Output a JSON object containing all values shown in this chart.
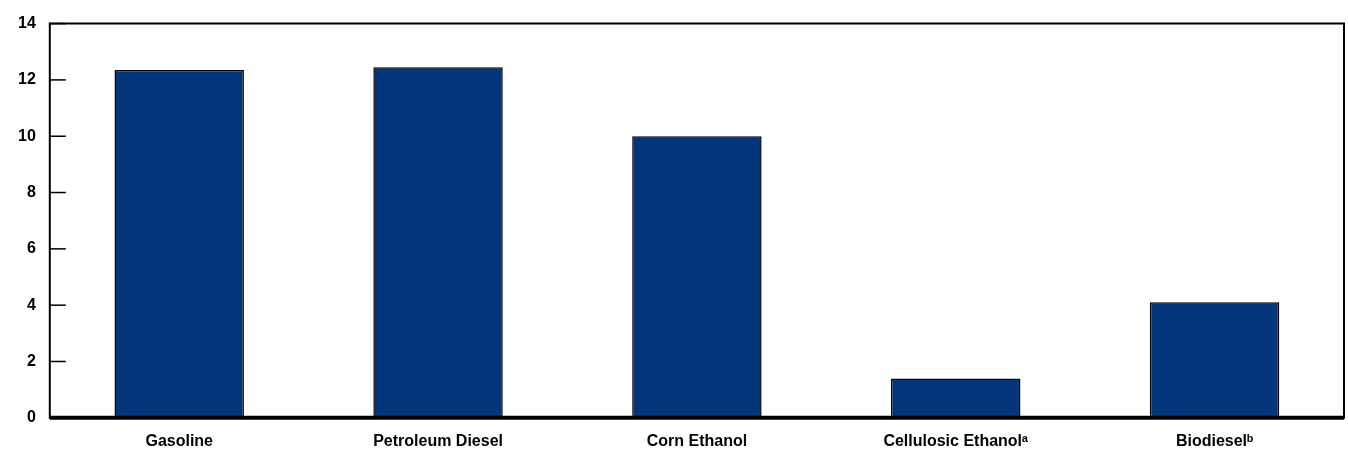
{
  "chart_data": {
    "type": "bar",
    "categories": [
      "Gasoline",
      "Petroleum Diesel",
      "Corn Ethanol",
      "Cellulosic Ethanolᵃ",
      "Biodieselᵇ"
    ],
    "values": [
      12.35,
      12.45,
      10.0,
      1.4,
      4.1
    ],
    "color": "#03357a",
    "ylim": [
      0,
      14
    ],
    "yticks": [
      0,
      2,
      4,
      6,
      8,
      10,
      12,
      14
    ],
    "grid": false,
    "legend": false
  }
}
